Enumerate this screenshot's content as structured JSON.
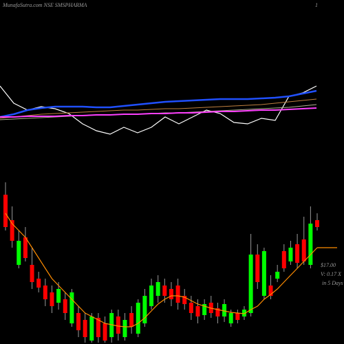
{
  "chart_data": [
    {
      "type": "line",
      "title": "MunafaSutra.com NSE SMSPHARMA",
      "corner_label": "1",
      "ylim": [
        0,
        100
      ],
      "series": [
        {
          "name": null,
          "color": "#ffffff",
          "width": 1.2,
          "values": [
            75,
            50,
            40,
            45,
            42,
            35,
            20,
            10,
            5,
            15,
            7,
            15,
            30,
            20,
            30,
            40,
            35,
            22,
            20,
            28,
            25,
            60,
            65,
            75
          ]
        },
        {
          "name": null,
          "color": "#2050ff",
          "width": 2.5,
          "values": [
            30,
            34,
            40,
            43,
            45,
            45,
            45,
            44,
            44,
            46,
            48,
            50,
            52,
            53,
            54,
            55,
            56,
            56,
            56,
            57,
            58,
            60,
            64,
            68
          ]
        },
        {
          "name": null,
          "color": "#c08040",
          "width": 1,
          "values": [
            28,
            30,
            32,
            34,
            35,
            36,
            37,
            38,
            39,
            40,
            40,
            41,
            42,
            42,
            43,
            44,
            45,
            46,
            47,
            48,
            50,
            52,
            54,
            56
          ]
        },
        {
          "name": null,
          "color": "#b0b090",
          "width": 1,
          "values": [
            26,
            27,
            28,
            29,
            30,
            31,
            32,
            33,
            33,
            34,
            34,
            35,
            36,
            36,
            37,
            38,
            39,
            40,
            41,
            42,
            43,
            44,
            46,
            48
          ]
        },
        {
          "name": null,
          "color": "#ff40ff",
          "width": 2,
          "values": [
            30,
            30,
            31,
            31,
            31,
            32,
            32,
            33,
            33,
            34,
            34,
            35,
            35,
            36,
            36,
            37,
            38,
            38,
            39,
            40,
            40,
            41,
            42,
            43
          ]
        }
      ]
    },
    {
      "type": "candlestick",
      "ylim": [
        0,
        25
      ],
      "annotations": [
        "$17.00",
        "V: 0.17 X",
        "in 5 Days"
      ],
      "up_color": "#00ff00",
      "down_color": "#ff0000",
      "ma_color": "#ff8c00",
      "open": [
        21.7,
        18.0,
        11.5,
        15.5,
        11.5,
        9.5,
        8.5,
        7.5,
        6.0,
        6.5,
        3.0,
        4.5,
        3.5,
        0.5,
        3.8,
        3.0,
        1.0,
        4.0,
        1.0,
        4.5,
        1.5,
        3.0,
        5.5,
        7.0,
        8.5,
        8.0,
        8.5,
        7.0,
        6.0,
        5.5,
        4.2,
        6.0,
        5.2,
        4.0,
        3.0,
        4.5,
        4.0,
        4.5,
        13.0,
        7.0,
        8.5,
        9.5,
        13.5,
        12.0,
        14.5,
        15.2,
        11.5,
        18.0
      ],
      "close": [
        17.0,
        15.0,
        15.0,
        12.5,
        9.0,
        8.2,
        6.5,
        5.5,
        8.0,
        4.5,
        7.5,
        2.0,
        1.0,
        4.0,
        1.0,
        0.5,
        4.5,
        1.5,
        3.5,
        2.5,
        6.0,
        7.0,
        8.5,
        9.0,
        7.0,
        6.5,
        6.0,
        5.8,
        4.5,
        4.0,
        5.8,
        4.5,
        4.0,
        5.8,
        4.5,
        3.5,
        5.0,
        13.0,
        9.0,
        13.5,
        7.0,
        10.5,
        11.0,
        14.0,
        11.8,
        12.0,
        17.5,
        17.0
      ],
      "high": [
        23.5,
        20.0,
        16.5,
        17.0,
        14.0,
        10.5,
        9.5,
        8.5,
        9.0,
        7.5,
        8.0,
        5.5,
        4.5,
        4.5,
        4.5,
        4.0,
        5.0,
        5.0,
        4.5,
        5.5,
        6.5,
        8.0,
        9.5,
        10.0,
        9.5,
        9.0,
        9.5,
        8.0,
        7.0,
        6.5,
        6.5,
        7.0,
        6.0,
        6.5,
        5.0,
        5.0,
        5.5,
        16.0,
        14.5,
        14.0,
        10.0,
        11.5,
        14.5,
        15.0,
        16.0,
        18.5,
        20.0,
        19.0
      ],
      "low": [
        16.5,
        14.0,
        11.0,
        12.0,
        8.0,
        7.5,
        5.5,
        4.5,
        5.0,
        3.5,
        2.5,
        1.0,
        0.2,
        0.2,
        0.2,
        0.2,
        0.2,
        0.5,
        0.5,
        1.5,
        1.0,
        2.5,
        5.0,
        6.0,
        6.0,
        5.5,
        5.0,
        5.0,
        3.5,
        3.0,
        3.5,
        3.8,
        3.0,
        3.2,
        2.5,
        3.0,
        3.5,
        4.0,
        8.0,
        6.5,
        6.5,
        9.0,
        10.5,
        11.5,
        11.0,
        11.5,
        11.0,
        16.5
      ],
      "ma": [
        19.0,
        17.5,
        16.5,
        15.5,
        14.0,
        12.5,
        11.0,
        9.5,
        8.5,
        7.5,
        6.5,
        5.5,
        4.5,
        4.0,
        3.5,
        3.0,
        2.8,
        2.6,
        2.5,
        2.5,
        3.0,
        3.8,
        4.8,
        5.8,
        6.5,
        7.0,
        7.0,
        6.8,
        6.3,
        5.8,
        5.5,
        5.2,
        5.0,
        4.8,
        4.6,
        4.5,
        4.4,
        5.0,
        5.5,
        6.5,
        7.2,
        8.0,
        9.0,
        10.0,
        11.0,
        12.0,
        13.0,
        14.0
      ]
    }
  ]
}
